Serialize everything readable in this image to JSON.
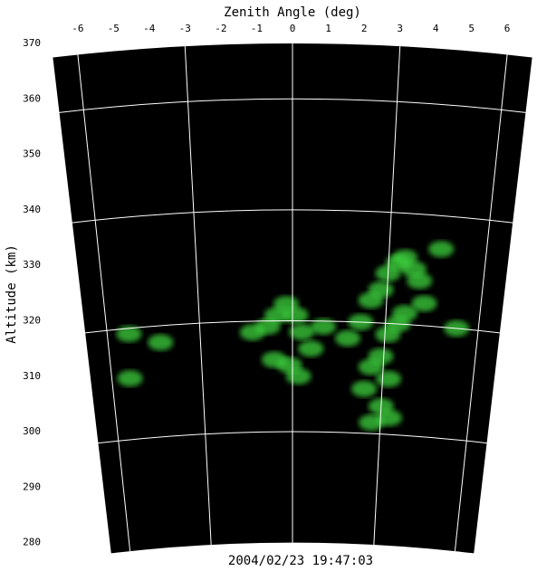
{
  "chart_data": {
    "type": "fan",
    "title": "Zenith Angle (deg)",
    "ylabel": "Altitude (km)",
    "timestamp": "2004/02/23  19:47:03",
    "xlim": [
      -6.7,
      6.7
    ],
    "ylim": [
      280,
      370
    ],
    "xticks": [
      -6,
      -5,
      -4,
      -3,
      -2,
      -1,
      0,
      1,
      2,
      3,
      4,
      5,
      6
    ],
    "yticks": [
      280,
      290,
      300,
      310,
      320,
      330,
      340,
      350,
      360,
      370
    ],
    "x_grid": [
      -6,
      -3,
      0,
      3,
      6
    ],
    "y_grid": [
      300,
      320,
      340,
      360
    ],
    "background": "#000000",
    "grid_color": "#ffffff",
    "echo": {
      "color": "#3cd23c",
      "x": [
        -5.3,
        -4.3,
        -5.4,
        -1.3,
        -0.8,
        -0.5,
        -0.2,
        0.1,
        0.3,
        -0.6,
        -0.1,
        0.2,
        0.6,
        1.0,
        1.8,
        2.2,
        2.5,
        2.8,
        3.0,
        3.3,
        3.5,
        3.8,
        4.0,
        3.1,
        3.4,
        2.9,
        3.2,
        2.6,
        2.4,
        3.6,
        4.2,
        4.6,
        3.0,
        2.7,
        3.3,
        5.3
      ],
      "y": [
        319,
        317,
        311,
        318,
        319,
        321,
        323,
        321,
        318,
        313,
        312,
        310,
        315,
        319,
        317,
        320,
        324,
        326,
        329,
        331,
        332,
        330,
        328,
        318,
        320,
        314,
        310,
        312,
        308,
        322,
        324,
        334,
        305,
        302,
        303,
        320
      ]
    }
  }
}
